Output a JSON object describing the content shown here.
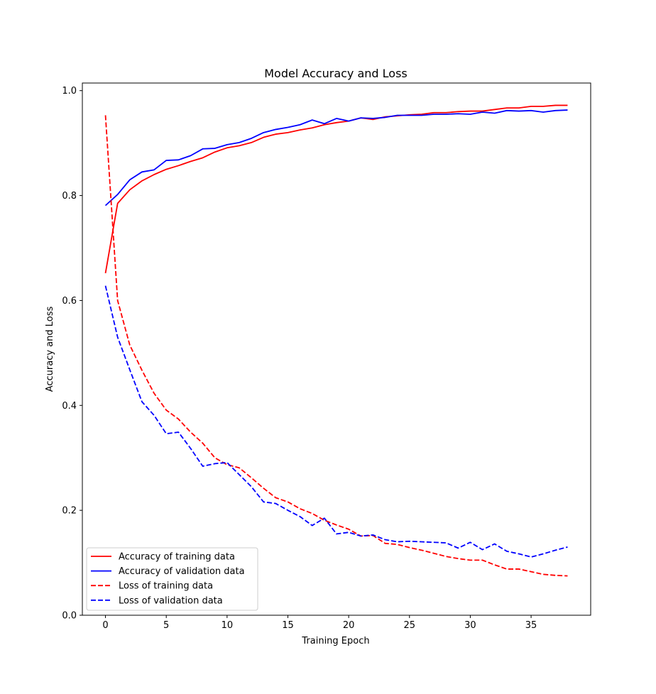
{
  "chart_data": {
    "type": "line",
    "title": "Model Accuracy and  Loss",
    "xlabel": "Training Epoch",
    "ylabel": "Accuracy and Loss",
    "xlim": [
      -1.9,
      39.9
    ],
    "ylim": [
      0.0,
      1.0145
    ],
    "xticks": [
      0,
      5,
      10,
      15,
      20,
      25,
      30,
      35
    ],
    "yticks": [
      0.0,
      0.2,
      0.4,
      0.6,
      0.8,
      1.0
    ],
    "ytick_labels": [
      "0.0",
      "0.2",
      "0.4",
      "0.6",
      "0.8",
      "1.0"
    ],
    "grid": false,
    "legend_position": "lower-left",
    "x": [
      0,
      1,
      2,
      3,
      4,
      5,
      6,
      7,
      8,
      9,
      10,
      11,
      12,
      13,
      14,
      15,
      16,
      17,
      18,
      19,
      20,
      21,
      22,
      23,
      24,
      25,
      26,
      27,
      28,
      29,
      30,
      31,
      32,
      33,
      34,
      35,
      36,
      37,
      38
    ],
    "series": [
      {
        "name": "Accuracy of training data",
        "color": "#ff0000",
        "style": "solid",
        "values": [
          0.652,
          0.785,
          0.811,
          0.828,
          0.84,
          0.85,
          0.857,
          0.865,
          0.872,
          0.883,
          0.891,
          0.895,
          0.901,
          0.911,
          0.917,
          0.92,
          0.925,
          0.929,
          0.935,
          0.939,
          0.942,
          0.948,
          0.945,
          0.95,
          0.952,
          0.954,
          0.955,
          0.958,
          0.958,
          0.96,
          0.961,
          0.961,
          0.964,
          0.967,
          0.967,
          0.97,
          0.97,
          0.972,
          0.972
        ]
      },
      {
        "name": "Accuracy of validation data",
        "color": "#0000ff",
        "style": "solid",
        "values": [
          0.781,
          0.802,
          0.83,
          0.845,
          0.849,
          0.867,
          0.868,
          0.876,
          0.889,
          0.89,
          0.897,
          0.901,
          0.909,
          0.92,
          0.926,
          0.93,
          0.935,
          0.944,
          0.937,
          0.947,
          0.942,
          0.948,
          0.947,
          0.949,
          0.953,
          0.953,
          0.953,
          0.955,
          0.955,
          0.956,
          0.955,
          0.959,
          0.957,
          0.962,
          0.961,
          0.962,
          0.959,
          0.962,
          0.963
        ]
      },
      {
        "name": "Loss of training data",
        "color": "#ff0000",
        "style": "dashed",
        "values": [
          0.953,
          0.6,
          0.515,
          0.467,
          0.423,
          0.391,
          0.374,
          0.349,
          0.328,
          0.3,
          0.287,
          0.281,
          0.262,
          0.242,
          0.224,
          0.216,
          0.203,
          0.194,
          0.181,
          0.172,
          0.164,
          0.151,
          0.152,
          0.137,
          0.135,
          0.129,
          0.124,
          0.118,
          0.112,
          0.108,
          0.105,
          0.105,
          0.096,
          0.088,
          0.088,
          0.083,
          0.078,
          0.076,
          0.075
        ]
      },
      {
        "name": "Loss of validation data",
        "color": "#0000ff",
        "style": "dashed",
        "values": [
          0.628,
          0.53,
          0.468,
          0.407,
          0.381,
          0.346,
          0.349,
          0.318,
          0.284,
          0.289,
          0.291,
          0.268,
          0.245,
          0.216,
          0.213,
          0.2,
          0.188,
          0.171,
          0.185,
          0.155,
          0.158,
          0.151,
          0.153,
          0.144,
          0.14,
          0.141,
          0.14,
          0.139,
          0.138,
          0.128,
          0.139,
          0.125,
          0.136,
          0.122,
          0.117,
          0.111,
          0.117,
          0.124,
          0.13
        ]
      }
    ]
  }
}
